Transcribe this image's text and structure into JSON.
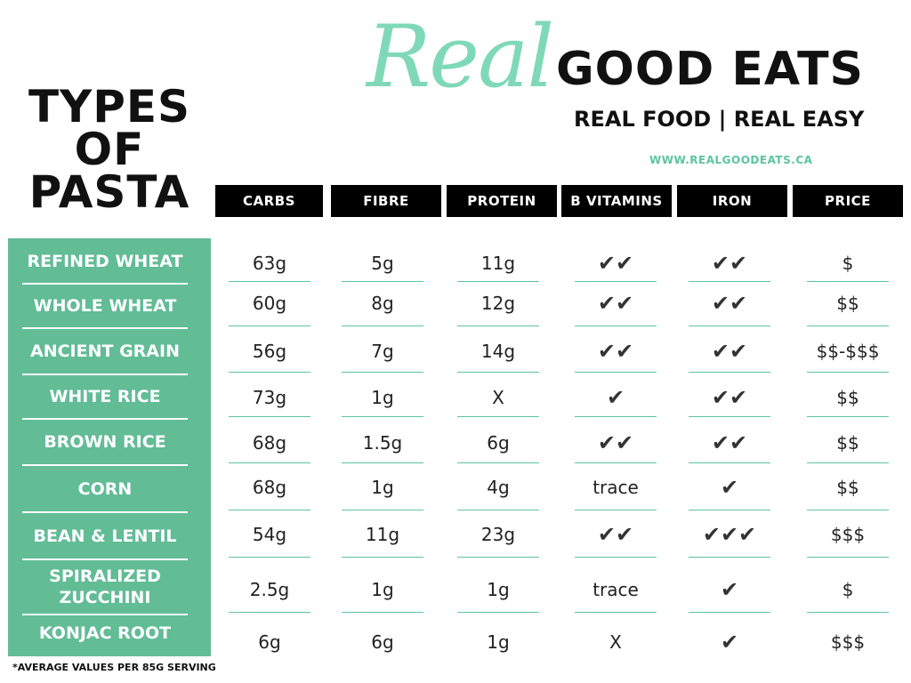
{
  "title": [
    "TYPES",
    "OF",
    "PASTA"
  ],
  "logo": {
    "script": "Real",
    "main": "GOOD EATS",
    "tagline": "REAL FOOD | REAL EASY",
    "website": "WWW.REALGOODEATS.CA"
  },
  "columns": [
    "CARBS",
    "FIBRE",
    "PROTEIN",
    "B VITAMINS",
    "IRON",
    "PRICE"
  ],
  "rows": [
    {
      "label": "REFINED WHEAT",
      "values": [
        "63g",
        "5g",
        "11g",
        "✔✔",
        "✔✔",
        "$"
      ]
    },
    {
      "label": "WHOLE WHEAT",
      "values": [
        "60g",
        "8g",
        "12g",
        "✔✔",
        "✔✔",
        "$$"
      ]
    },
    {
      "label": "ANCIENT GRAIN",
      "values": [
        "56g",
        "7g",
        "14g",
        "✔✔",
        "✔✔",
        "$$-$$$"
      ]
    },
    {
      "label": "WHITE RICE",
      "values": [
        "73g",
        "1g",
        "X",
        "✔",
        "✔✔",
        "$$"
      ]
    },
    {
      "label": "BROWN RICE",
      "values": [
        "68g",
        "1.5g",
        "6g",
        "✔✔",
        "✔✔",
        "$$"
      ]
    },
    {
      "label": "CORN",
      "values": [
        "68g",
        "1g",
        "4g",
        "trace",
        "✔",
        "$$"
      ]
    },
    {
      "label": "BEAN & LENTIL",
      "values": [
        "54g",
        "11g",
        "23g",
        "✔✔",
        "✔✔✔",
        "$$$"
      ]
    },
    {
      "label": "SPIRALIZED\nZUCCHINI",
      "values": [
        "2.5g",
        "1g",
        "1g",
        "trace",
        "✔",
        "$"
      ]
    },
    {
      "label": "KONJAC ROOT",
      "values": [
        "6g",
        "6g",
        "1g",
        "X",
        "✔",
        "$$$"
      ]
    }
  ],
  "footnote": "*AVERAGE VALUES PER 85G SERVING",
  "colors": {
    "accent": "#62bc96",
    "logo_script": "#7fd9b8",
    "header_bg": "#000000"
  }
}
